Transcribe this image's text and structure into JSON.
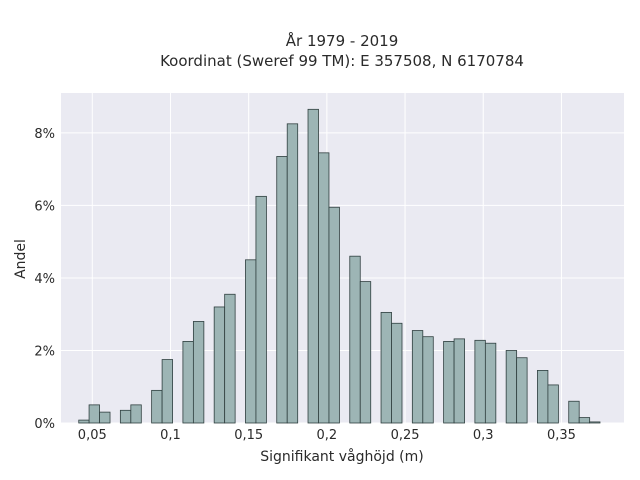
{
  "chart_data": {
    "type": "bar",
    "title_line1": "År 1979 - 2019",
    "title_line2": "Koordinat (Sweref 99 TM): E 357508, N 6170784",
    "xlabel": "Signifikant våghöjd (m)",
    "ylabel": "Andel",
    "xlim": [
      0.03,
      0.39
    ],
    "ylim": [
      0,
      9.1
    ],
    "grid": true,
    "x_ticks": [
      {
        "value": 0.05,
        "label": "0,05"
      },
      {
        "value": 0.1,
        "label": "0,1"
      },
      {
        "value": 0.15,
        "label": "0,15"
      },
      {
        "value": 0.2,
        "label": "0,2"
      },
      {
        "value": 0.25,
        "label": "0,25"
      },
      {
        "value": 0.3,
        "label": "0,3"
      },
      {
        "value": 0.35,
        "label": "0,35"
      }
    ],
    "y_ticks": [
      {
        "value": 0,
        "label": "0%"
      },
      {
        "value": 2,
        "label": "2%"
      },
      {
        "value": 4,
        "label": "4%"
      },
      {
        "value": 6,
        "label": "6%"
      },
      {
        "value": 8,
        "label": "8%"
      }
    ],
    "bin_width": 0.0067,
    "x": [
      0.0447,
      0.0513,
      0.058,
      0.0647,
      0.0713,
      0.078,
      0.0847,
      0.0913,
      0.098,
      0.1047,
      0.1113,
      0.118,
      0.1247,
      0.1313,
      0.138,
      0.1447,
      0.1513,
      0.158,
      0.1647,
      0.1713,
      0.178,
      0.1847,
      0.1913,
      0.198,
      0.2047,
      0.2113,
      0.218,
      0.2247,
      0.2313,
      0.238,
      0.2447,
      0.2513,
      0.258,
      0.2647,
      0.2713,
      0.278,
      0.2847,
      0.2913,
      0.298,
      0.3047,
      0.3113,
      0.318,
      0.3247,
      0.3313,
      0.338,
      0.3447,
      0.3513,
      0.358,
      0.3647,
      0.3713
    ],
    "values": [
      0.08,
      0.5,
      0.3,
      0,
      0.35,
      0.5,
      0,
      0.9,
      1.75,
      0,
      2.25,
      2.8,
      0,
      3.2,
      3.55,
      0,
      4.5,
      6.25,
      0,
      7.35,
      8.25,
      0,
      8.65,
      7.45,
      5.95,
      0,
      4.6,
      3.9,
      0,
      3.05,
      2.75,
      0,
      2.55,
      2.38,
      0,
      2.25,
      2.32,
      0,
      2.28,
      2.2,
      0,
      2.0,
      1.8,
      0,
      1.45,
      1.05,
      0,
      0.6,
      0.15,
      0.03
    ],
    "colors": {
      "plot_bg": "#eaeaf2",
      "grid": "#ffffff",
      "bar_fill": "#9db5b5",
      "bar_edge": "#2f3f3f"
    }
  }
}
